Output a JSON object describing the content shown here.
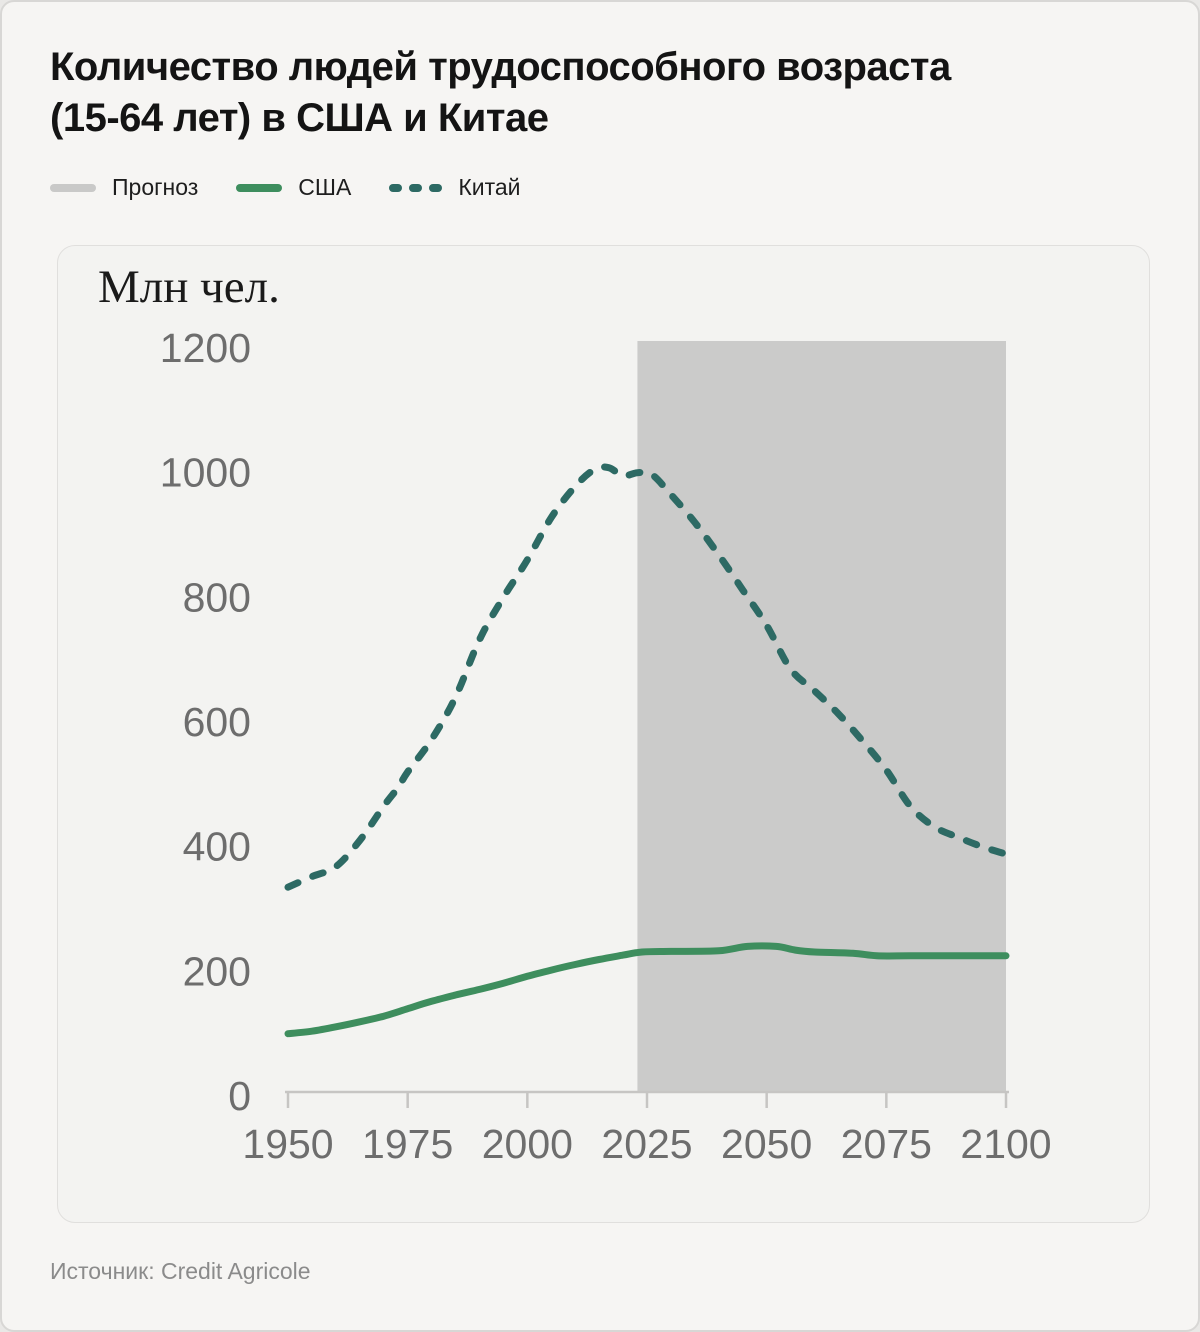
{
  "title": {
    "line1": "Количество людей трудоспособного возраста",
    "line2": "(15-64 лет) в США и Китае"
  },
  "legend": {
    "items": [
      {
        "label": "Прогноз",
        "style": "solid",
        "color": "#c9c9c8"
      },
      {
        "label": "США",
        "style": "solid",
        "color": "#3e8e5e"
      },
      {
        "label": "Китай",
        "style": "dashed",
        "color": "#2d6a64"
      }
    ]
  },
  "source": "Источник: Credit Agricole",
  "colors": {
    "usa_line": "#3e8e5e",
    "china_line": "#2d6a64",
    "forecast_band": "#cbcbca",
    "axis": "#c6c5c3",
    "tick_label": "#6d6d6d"
  },
  "chart_data": {
    "type": "line",
    "title": "Количество людей трудоспособного возраста (15-64 лет) в США и Китае",
    "ylabel": "Млн чел.",
    "xlabel": "",
    "grid": false,
    "legend_position": "top",
    "x_ticks": [
      1950,
      1975,
      2000,
      2025,
      2050,
      2075,
      2100
    ],
    "y_ticks": [
      0,
      200,
      400,
      600,
      800,
      1000,
      1200
    ],
    "xlim": [
      1950,
      2100
    ],
    "ylim": [
      0,
      1200
    ],
    "forecast_band": {
      "label": "Прогноз",
      "start": 2023,
      "end": 2100
    },
    "series": [
      {
        "name": "США",
        "style": "solid",
        "points": [
          [
            1950,
            100
          ],
          [
            1955,
            104
          ],
          [
            1960,
            111
          ],
          [
            1965,
            119
          ],
          [
            1970,
            128
          ],
          [
            1975,
            140
          ],
          [
            1980,
            152
          ],
          [
            1985,
            162
          ],
          [
            1990,
            171
          ],
          [
            1995,
            181
          ],
          [
            2000,
            192
          ],
          [
            2005,
            202
          ],
          [
            2010,
            211
          ],
          [
            2015,
            219
          ],
          [
            2020,
            226
          ],
          [
            2024,
            231
          ],
          [
            2030,
            232
          ],
          [
            2040,
            233
          ],
          [
            2046,
            240
          ],
          [
            2052,
            240
          ],
          [
            2056,
            234
          ],
          [
            2060,
            231
          ],
          [
            2068,
            229
          ],
          [
            2073,
            225
          ],
          [
            2080,
            225
          ],
          [
            2090,
            225
          ],
          [
            2100,
            225
          ]
        ]
      },
      {
        "name": "Китай",
        "style": "dashed",
        "points": [
          [
            1950,
            335
          ],
          [
            1955,
            352
          ],
          [
            1960,
            368
          ],
          [
            1965,
            410
          ],
          [
            1970,
            465
          ],
          [
            1973,
            495
          ],
          [
            1975,
            520
          ],
          [
            1980,
            572
          ],
          [
            1985,
            640
          ],
          [
            1990,
            732
          ],
          [
            1995,
            800
          ],
          [
            2000,
            860
          ],
          [
            2005,
            928
          ],
          [
            2010,
            978
          ],
          [
            2014,
            1005
          ],
          [
            2017,
            1008
          ],
          [
            2020,
            995
          ],
          [
            2023,
            1000
          ],
          [
            2026,
            997
          ],
          [
            2030,
            965
          ],
          [
            2035,
            920
          ],
          [
            2040,
            868
          ],
          [
            2045,
            812
          ],
          [
            2050,
            755
          ],
          [
            2055,
            685
          ],
          [
            2060,
            650
          ],
          [
            2065,
            613
          ],
          [
            2070,
            570
          ],
          [
            2075,
            523
          ],
          [
            2080,
            465
          ],
          [
            2085,
            432
          ],
          [
            2090,
            415
          ],
          [
            2095,
            400
          ],
          [
            2100,
            388
          ]
        ]
      }
    ]
  }
}
